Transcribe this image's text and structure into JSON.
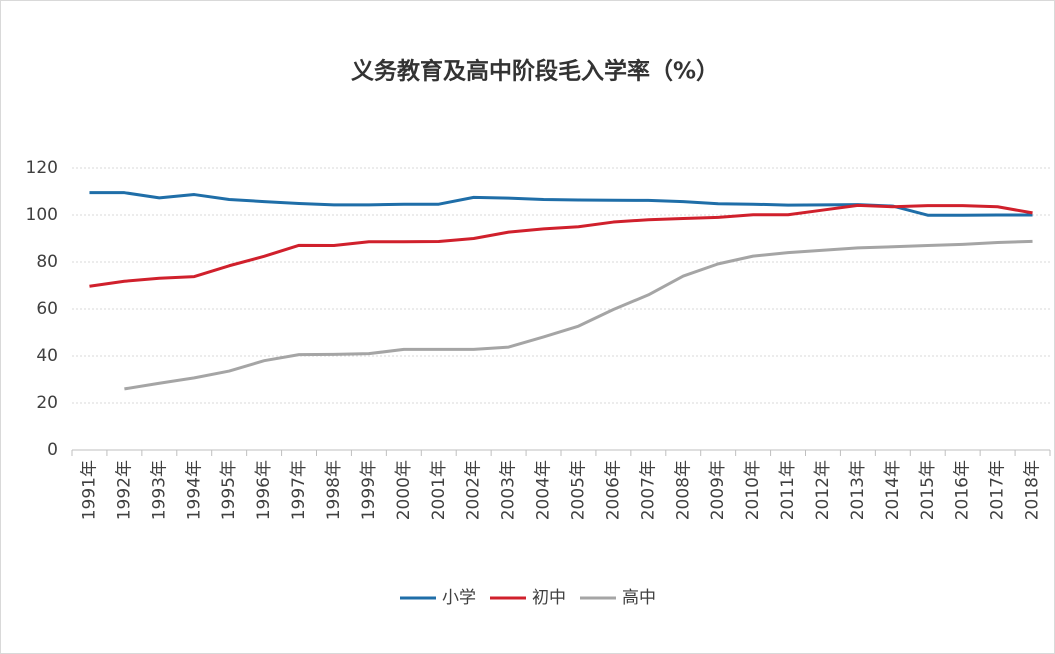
{
  "chart_data": {
    "type": "line",
    "title": "义务教育及高中阶段毛入学率（%）",
    "categories": [
      "1991年",
      "1992年",
      "1993年",
      "1994年",
      "1995年",
      "1996年",
      "1997年",
      "1998年",
      "1999年",
      "2000年",
      "2001年",
      "2002年",
      "2003年",
      "2004年",
      "2005年",
      "2006年",
      "2007年",
      "2008年",
      "2009年",
      "2010年",
      "2011年",
      "2012年",
      "2013年",
      "2014年",
      "2015年",
      "2016年",
      "2017年",
      "2018年"
    ],
    "series": [
      {
        "name": "小学",
        "color": "#1f6ea8",
        "values": [
          109.5,
          109.5,
          107.3,
          108.7,
          106.6,
          105.7,
          104.9,
          104.3,
          104.3,
          104.6,
          104.6,
          107.5,
          107.2,
          106.6,
          106.4,
          106.3,
          106.2,
          105.7,
          104.8,
          104.6,
          104.2,
          104.3,
          104.4,
          103.8,
          99.9,
          99.9,
          100,
          100
        ]
      },
      {
        "name": "初中",
        "color": "#d0202c",
        "values": [
          69.7,
          71.8,
          73.1,
          73.8,
          78.4,
          82.4,
          87.1,
          87.0,
          88.6,
          88.6,
          88.7,
          90.0,
          92.7,
          94.1,
          95.0,
          97.0,
          98.0,
          98.5,
          99.0,
          100.1,
          100.1,
          102.1,
          104.1,
          103.5,
          104.0,
          104.0,
          103.5,
          100.9
        ]
      },
      {
        "name": "高中",
        "color": "#a5a5a5",
        "values": [
          null,
          26.0,
          28.4,
          30.7,
          33.6,
          38.0,
          40.6,
          40.7,
          41.0,
          42.8,
          42.8,
          42.8,
          43.8,
          48.1,
          52.7,
          59.8,
          66.0,
          74.0,
          79.2,
          82.5,
          84.0,
          85.0,
          86.0,
          86.5,
          87.0,
          87.5,
          88.3,
          88.8
        ]
      }
    ],
    "ylim": [
      0,
      120
    ],
    "yticks": [
      0,
      20,
      40,
      60,
      80,
      100,
      120
    ],
    "grid": true,
    "legend": "bottom"
  }
}
